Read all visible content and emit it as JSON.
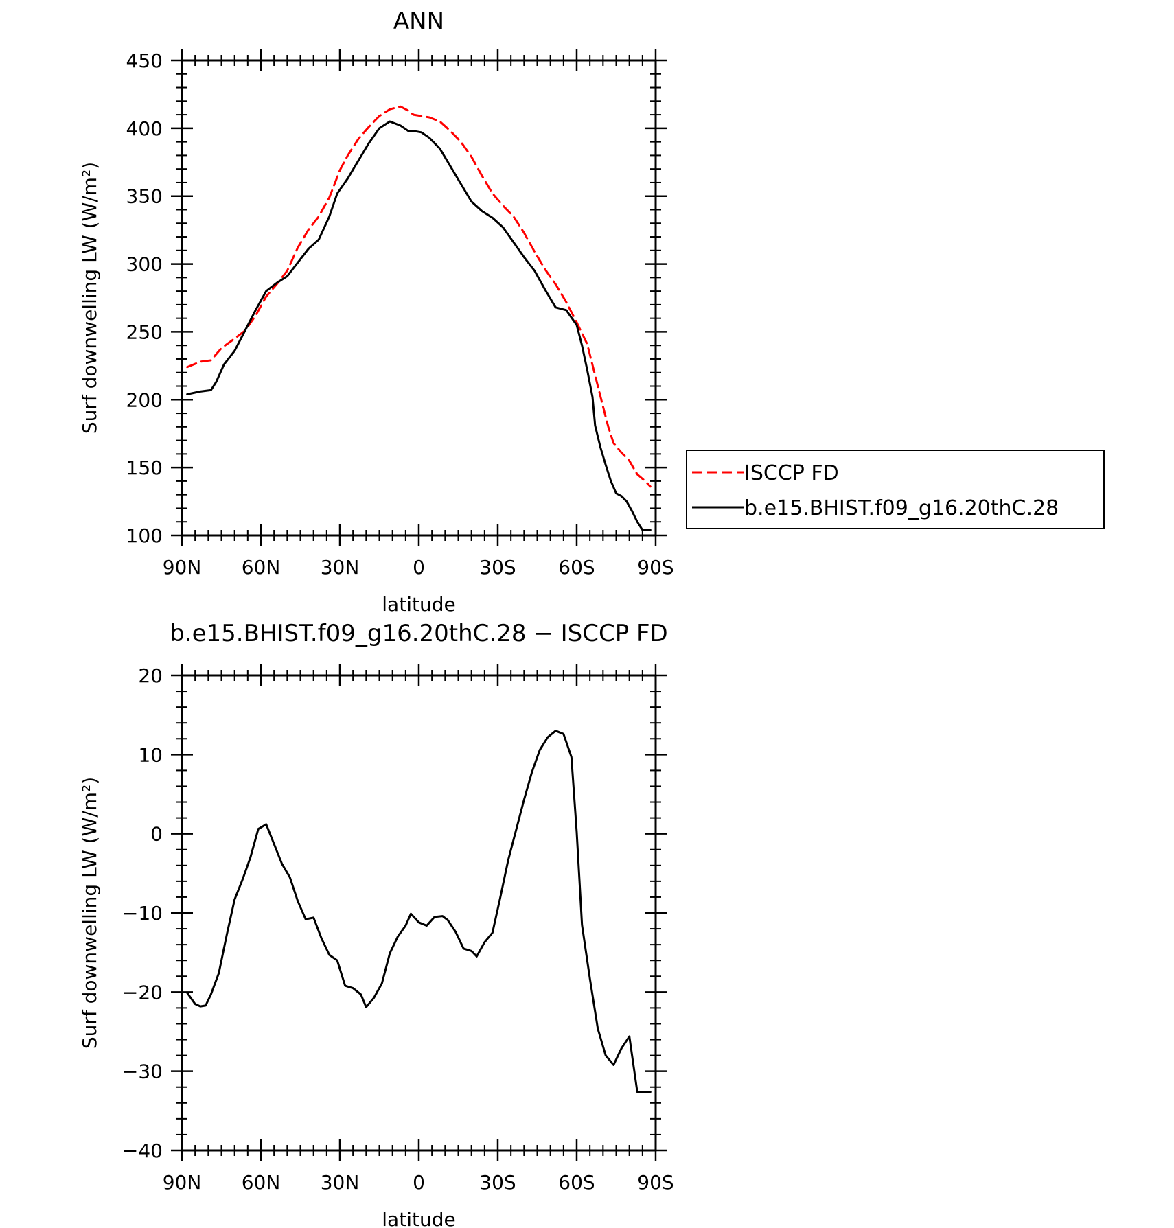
{
  "chart_data": [
    {
      "type": "line",
      "title": "ANN",
      "xlabel": "latitude",
      "ylabel": "Surf downwelling LW (W/m²)",
      "xlim": [
        90,
        -90
      ],
      "ylim": [
        100,
        450
      ],
      "yticks": [
        100,
        150,
        200,
        250,
        300,
        350,
        400,
        450
      ],
      "xticks": [
        {
          "value": 90,
          "label": "90N"
        },
        {
          "value": 60,
          "label": "60N"
        },
        {
          "value": 30,
          "label": "30N"
        },
        {
          "value": 0,
          "label": "0"
        },
        {
          "value": -30,
          "label": "30S"
        },
        {
          "value": -60,
          "label": "60S"
        },
        {
          "value": -90,
          "label": "90S"
        }
      ],
      "legend": {
        "position": "right",
        "entries": [
          "ISCCP FD",
          "b.e15.BHIST.f09_g16.20thC.28"
        ]
      },
      "series": [
        {
          "name": "ISCCP FD",
          "color": "#ff0000",
          "dash": "dashed",
          "x": [
            88,
            83,
            79,
            75,
            70,
            66,
            62,
            58,
            54,
            50,
            46,
            42,
            38,
            34,
            30,
            27,
            23,
            19,
            15,
            11,
            7,
            4,
            2,
            -1,
            -4,
            -8,
            -12,
            -16,
            -20,
            -24,
            -28,
            -32,
            -36,
            -40,
            -44,
            -48,
            -52,
            -56,
            -60,
            -64,
            -67,
            -70,
            -72,
            -74,
            -77,
            -80,
            -83,
            -86,
            -88
          ],
          "y": [
            224,
            228,
            229,
            238,
            245,
            251,
            262,
            276,
            285,
            295,
            312,
            325,
            335,
            349,
            369,
            380,
            392,
            401,
            409,
            414,
            416,
            413,
            410,
            409,
            408,
            405,
            398,
            390,
            379,
            365,
            352,
            343,
            335,
            323,
            309,
            296,
            285,
            272,
            257,
            241,
            218,
            195,
            180,
            168,
            161,
            155,
            145,
            140,
            136
          ]
        },
        {
          "name": "b.e15.BHIST.f09_g16.20thC.28",
          "color": "#000000",
          "dash": "solid",
          "x": [
            88,
            83,
            79,
            77,
            74,
            70,
            66,
            62,
            58,
            54,
            50,
            46,
            42,
            38,
            34,
            31,
            27,
            23,
            19,
            15,
            11,
            7,
            4,
            2,
            -1,
            -4,
            -8,
            -12,
            -16,
            -20,
            -24,
            -28,
            -32,
            -36,
            -40,
            -44,
            -48,
            -52,
            -56,
            -60,
            -62,
            -64,
            -66,
            -67,
            -69,
            -71,
            -73,
            -75,
            -77,
            -79,
            -81,
            -83,
            -85,
            -87,
            -88
          ],
          "y": [
            204,
            206,
            207,
            213,
            226,
            236,
            251,
            266,
            280,
            286,
            291,
            301,
            311,
            318,
            335,
            352,
            363,
            376,
            389,
            400,
            405,
            402,
            398,
            398,
            397,
            393,
            385,
            372,
            359,
            346,
            339,
            334,
            327,
            316,
            305,
            295,
            281,
            268,
            266,
            255,
            240,
            222,
            202,
            181,
            165,
            152,
            140,
            131,
            129,
            125,
            118,
            110,
            104,
            104,
            104
          ]
        }
      ]
    },
    {
      "type": "line",
      "title": "b.e15.BHIST.f09_g16.20thC.28 − ISCCP FD",
      "xlabel": "latitude",
      "ylabel": "Surf downwelling LW (W/m²)",
      "xlim": [
        90,
        -90
      ],
      "ylim": [
        -40,
        20
      ],
      "yticks": [
        -40,
        -30,
        -20,
        -10,
        0,
        10,
        20
      ],
      "ytick_labels": [
        "−40",
        "−30",
        "−20",
        "−10",
        "0",
        "10",
        "20"
      ],
      "xticks": [
        {
          "value": 90,
          "label": "90N"
        },
        {
          "value": 60,
          "label": "60N"
        },
        {
          "value": 30,
          "label": "30N"
        },
        {
          "value": 0,
          "label": "0"
        },
        {
          "value": -30,
          "label": "30S"
        },
        {
          "value": -60,
          "label": "60S"
        },
        {
          "value": -90,
          "label": "90S"
        }
      ],
      "series": [
        {
          "color": "#000000",
          "dash": "solid",
          "x": [
            88,
            85,
            83,
            81,
            79,
            76,
            73,
            70,
            67,
            64,
            61,
            58,
            55,
            52,
            49,
            46,
            43,
            40,
            37,
            34,
            31,
            28,
            25,
            22,
            20,
            17,
            14,
            11,
            8,
            5,
            3,
            0,
            -3,
            -6,
            -9,
            -11,
            -14,
            -17,
            -20,
            -22,
            -25,
            -28,
            -31,
            -34,
            -37,
            -40,
            -43,
            -46,
            -49,
            -52,
            -55,
            -58,
            -60,
            -62,
            -65,
            -68,
            -71,
            -74,
            -77,
            -80,
            -83,
            -86,
            -88
          ],
          "y": [
            -20.1,
            -21.5,
            -21.8,
            -21.7,
            -20.3,
            -17.6,
            -12.8,
            -8.3,
            -5.8,
            -3.0,
            0.6,
            1.2,
            -1.3,
            -3.8,
            -5.5,
            -8.5,
            -10.8,
            -10.6,
            -13.2,
            -15.3,
            -16.0,
            -19.2,
            -19.5,
            -20.3,
            -21.9,
            -20.7,
            -18.9,
            -15.1,
            -13.0,
            -11.6,
            -10.1,
            -11.2,
            -11.6,
            -10.5,
            -10.4,
            -10.9,
            -12.4,
            -14.5,
            -14.8,
            -15.5,
            -13.7,
            -12.5,
            -8.0,
            -3.3,
            0.5,
            4.3,
            7.8,
            10.6,
            12.2,
            13.0,
            12.6,
            9.7,
            0.2,
            -11.5,
            -18.3,
            -24.6,
            -28.0,
            -29.2,
            -27.1,
            -25.6,
            -32.6,
            -32.6,
            -32.6
          ]
        }
      ]
    }
  ]
}
